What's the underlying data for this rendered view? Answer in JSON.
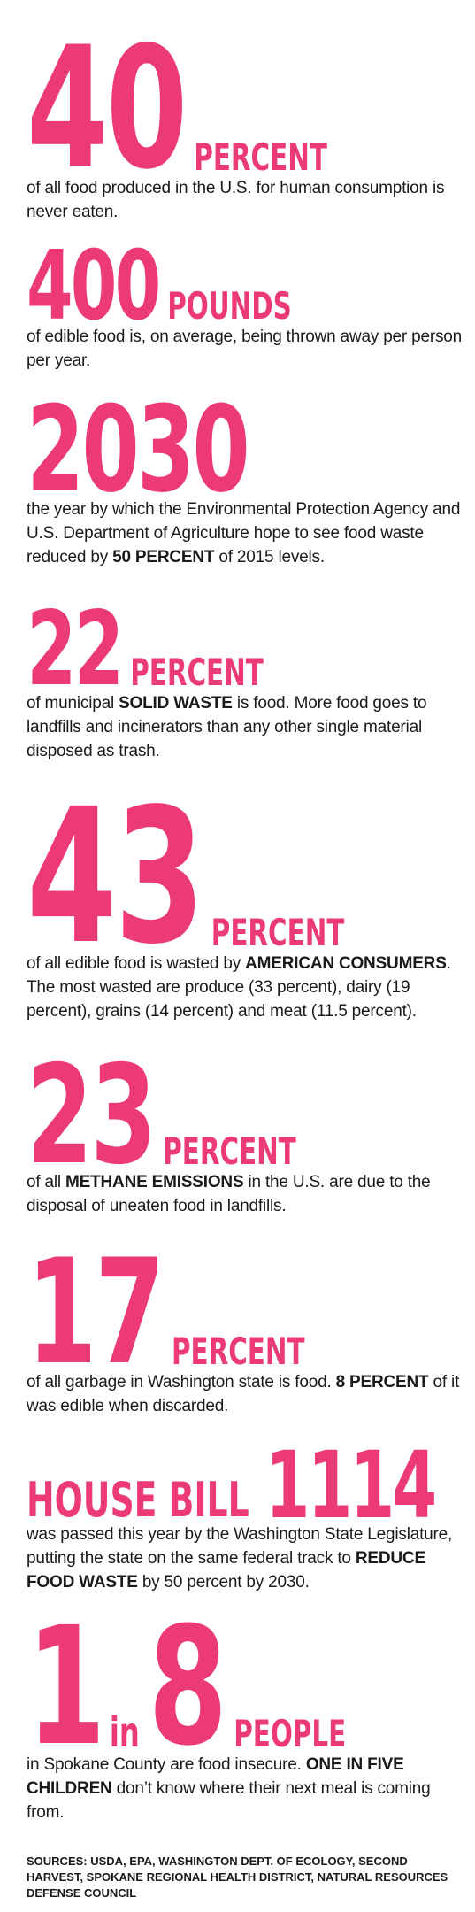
{
  "stats": [
    {
      "number": "40",
      "unit": "PERCENT",
      "body": [
        {
          "text": "of all food produced in the U.S. for human consumption is never eaten.",
          "strong": false
        }
      ]
    },
    {
      "number": "400",
      "unit": "POUNDS",
      "body": [
        {
          "text": "of edible food is, on average, being thrown away per person per year.",
          "strong": false
        }
      ]
    },
    {
      "number": "2030",
      "body": [
        {
          "text": "the year by which the Environmental Protection Agency and U.S. Department of Agriculture hope to see food waste reduced by ",
          "strong": false
        },
        {
          "text": "50 PERCENT",
          "strong": true
        },
        {
          "text": " of 2015 levels.",
          "strong": false
        }
      ]
    },
    {
      "number": "22",
      "unit": "PERCENT",
      "body": [
        {
          "text": "of municipal ",
          "strong": false
        },
        {
          "text": "SOLID WASTE",
          "strong": true
        },
        {
          "text": " is food. More food goes to landfills and incinerators than any other single material disposed as trash.",
          "strong": false
        }
      ]
    },
    {
      "number": "43",
      "unit": "PERCENT",
      "body": [
        {
          "text": "of all edible food is wasted by ",
          "strong": false
        },
        {
          "text": "AMERICAN CONSUMERS",
          "strong": true
        },
        {
          "text": ". The most wasted are produce (33 percent), dairy (19 percent), grains (14 percent) and meat (11.5 percent).",
          "strong": false
        }
      ]
    },
    {
      "number": "23",
      "unit": "PERCENT",
      "body": [
        {
          "text": "of all ",
          "strong": false
        },
        {
          "text": "METHANE EMISSIONS",
          "strong": true
        },
        {
          "text": " in the U.S. are due to the disposal of uneaten food in landfills.",
          "strong": false
        }
      ]
    },
    {
      "number": "17",
      "unit": "PERCENT",
      "body": [
        {
          "text": "of all garbage in Washington state is food. ",
          "strong": false
        },
        {
          "text": "8 PERCENT",
          "strong": true
        },
        {
          "text": " of it was edible when discarded.",
          "strong": false
        }
      ]
    },
    {
      "prefix": "HOUSE BILL",
      "number": "1114",
      "body": [
        {
          "text": "was passed this year by the Washington State Legislature, putting the state on the same federal track to ",
          "strong": false
        },
        {
          "text": "REDUCE FOOD WASTE",
          "strong": true
        },
        {
          "text": " by 50 percent by 2030.",
          "strong": false
        }
      ]
    },
    {
      "number": "1",
      "connector": "in",
      "number2": "8",
      "unit": "PEOPLE",
      "body": [
        {
          "text": "in Spokane County are food insecure. ",
          "strong": false
        },
        {
          "text": "ONE IN FIVE CHILDREN",
          "strong": true
        },
        {
          "text": " don’t know where their next meal is coming from.",
          "strong": false
        }
      ]
    }
  ],
  "sources": "SOURCES: USDA, EPA, WASHINGTON DEPT. OF ECOLOGY, SECOND HARVEST, SPOKANE REGIONAL HEALTH DISTRICT, NATURAL RESOURCES DEFENSE COUNCIL"
}
